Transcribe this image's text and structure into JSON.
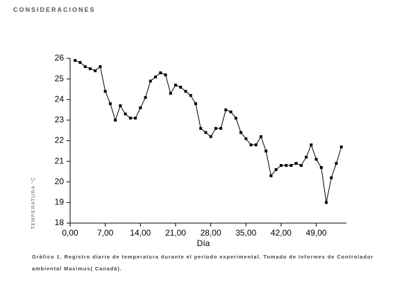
{
  "header": {
    "title": "CONSIDERACIONES"
  },
  "chart_data": {
    "type": "line",
    "x_label": "Día",
    "y_label": "TEMPERATURA °C",
    "x": [
      1,
      2,
      3,
      4,
      5,
      6,
      7,
      8,
      9,
      10,
      11,
      12,
      13,
      14,
      15,
      16,
      17,
      18,
      19,
      20,
      21,
      22,
      23,
      24,
      25,
      26,
      27,
      28,
      29,
      30,
      31,
      32,
      33,
      34,
      35,
      36,
      37,
      38,
      39,
      40,
      41,
      42,
      43,
      44,
      45,
      46,
      47,
      48,
      49,
      50,
      51,
      52,
      53,
      54
    ],
    "values": [
      25.9,
      25.8,
      25.6,
      25.5,
      25.4,
      25.6,
      24.4,
      23.8,
      23.0,
      23.7,
      23.3,
      23.1,
      23.1,
      23.6,
      24.1,
      24.9,
      25.1,
      25.3,
      25.2,
      24.3,
      24.7,
      24.6,
      24.4,
      24.2,
      23.8,
      22.6,
      22.4,
      22.2,
      22.6,
      22.6,
      23.5,
      23.4,
      23.1,
      22.4,
      22.1,
      21.8,
      21.8,
      22.2,
      21.5,
      20.3,
      20.6,
      20.8,
      20.8,
      20.8,
      20.9,
      20.8,
      21.2,
      21.8,
      21.1,
      20.7,
      19.0,
      20.2,
      20.9,
      21.7
    ],
    "color": "#000000",
    "xlim": [
      0,
      55
    ],
    "ylim": [
      18,
      26
    ],
    "xticks": [
      {
        "value": 0,
        "label": "0,00"
      },
      {
        "value": 7,
        "label": "7,00"
      },
      {
        "value": 14,
        "label": "14,00"
      },
      {
        "value": 21,
        "label": "21,00"
      },
      {
        "value": 28,
        "label": "28,00"
      },
      {
        "value": 35,
        "label": "35,00"
      },
      {
        "value": 42,
        "label": "42,00"
      },
      {
        "value": 49,
        "label": "49,00"
      }
    ],
    "yticks": [
      18,
      19,
      20,
      21,
      22,
      23,
      24,
      25,
      26
    ]
  },
  "caption": "Gráfico 1. Registro diario de temperatura durante el período experimental. Tomado de Informes de Controlador ambiental Maximus( Canadá)."
}
